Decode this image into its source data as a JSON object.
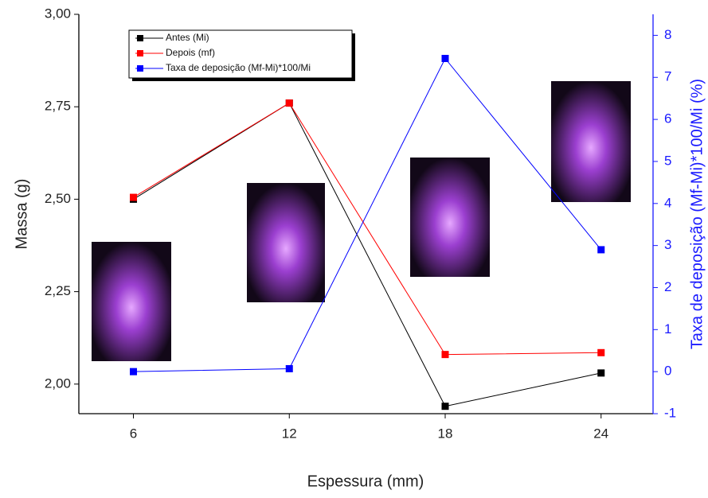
{
  "chart_data": {
    "type": "line",
    "x_label": "Espessura (mm)",
    "y_label": "Massa (g)",
    "y2_label": "Taxa de deposição (Mf-Mi)*100/Mi (%)",
    "x": [
      6,
      12,
      18,
      24
    ],
    "xlim": [
      3.9,
      26
    ],
    "xticks": [
      6,
      12,
      18,
      24
    ],
    "ylim": [
      1.92,
      3.0
    ],
    "yticks": [
      {
        "value": 2.0,
        "label": "2,00"
      },
      {
        "value": 2.25,
        "label": "2,25"
      },
      {
        "value": 2.5,
        "label": "2,50"
      },
      {
        "value": 2.75,
        "label": "2,75"
      },
      {
        "value": 3.0,
        "label": "3,00"
      }
    ],
    "y2lim": [
      -1,
      8.5
    ],
    "y2ticks": [
      -1,
      0,
      1,
      2,
      3,
      4,
      5,
      6,
      7,
      8
    ],
    "series": [
      {
        "name": "Antes (Mi)",
        "color": "#000000",
        "values": [
          2.5,
          2.76,
          1.94,
          2.03
        ]
      },
      {
        "name": "Depois (mf)",
        "color": "#ff0000",
        "values": [
          2.505,
          2.76,
          2.08,
          2.085
        ]
      },
      {
        "name": "Taxa de deposição (Mf-Mi)*100/Mi",
        "color": "#0000ff",
        "axis": "y2",
        "values": [
          0,
          0.07,
          7.45,
          2.9
        ]
      }
    ]
  }
}
